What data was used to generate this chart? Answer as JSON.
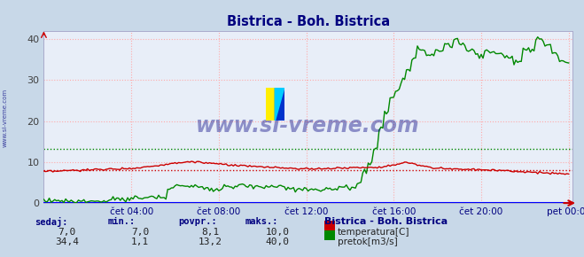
{
  "title": "Bistrica - Boh. Bistrica",
  "title_color": "#000080",
  "bg_color": "#c8d8e8",
  "plot_bg_color": "#e8eef8",
  "x_label_color": "#000080",
  "y_label_color": "#404040",
  "grid_color": "#ffaaaa",
  "grid_style": ":",
  "x_ticks_labels": [
    "čet 04:00",
    "čet 08:00",
    "čet 12:00",
    "čet 16:00",
    "čet 20:00",
    "pet 00:00"
  ],
  "x_ticks_pos": [
    48,
    96,
    144,
    192,
    240,
    288
  ],
  "y_ticks": [
    0,
    10,
    20,
    30,
    40
  ],
  "ylim": [
    0,
    42
  ],
  "xlim": [
    0,
    290
  ],
  "temp_color": "#cc0000",
  "flow_color": "#008800",
  "avg_temp_line": 8.1,
  "avg_flow_line": 13.2,
  "avg_temp_color": "#cc0000",
  "avg_flow_color": "#008800",
  "watermark_text": "www.si-vreme.com",
  "watermark_color": "#000080",
  "watermark_alpha": 0.4,
  "sidebar_text": "www.si-vreme.com",
  "legend_title": "Bistrica - Boh. Bistrica",
  "legend_title_color": "#000080",
  "footer_labels": [
    "sedaj:",
    "min.:",
    "povpr.:",
    "maks.:"
  ],
  "footer_color": "#000080",
  "temp_stats": [
    7.0,
    7.0,
    8.1,
    10.0
  ],
  "flow_stats": [
    34.4,
    1.1,
    13.2,
    40.0
  ],
  "legend_temp": "temperatura[C]",
  "legend_flow": "pretok[m3/s]",
  "n_points": 289
}
